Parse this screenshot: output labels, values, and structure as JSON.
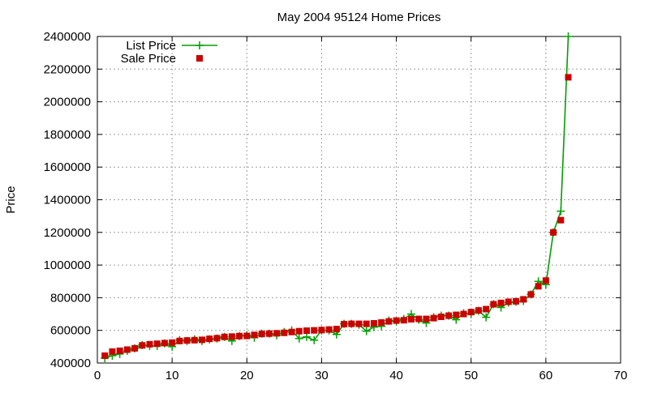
{
  "chart_data": {
    "type": "line",
    "title": "May 2004 95124 Home Prices",
    "xlabel": "",
    "ylabel": "Price",
    "xlim": [
      0,
      70
    ],
    "ylim": [
      400000,
      2400000
    ],
    "x_ticks": [
      0,
      10,
      20,
      30,
      40,
      50,
      60,
      70
    ],
    "y_ticks": [
      400000,
      600000,
      800000,
      1000000,
      1200000,
      1400000,
      1600000,
      1800000,
      2000000,
      2200000,
      2400000
    ],
    "grid": true,
    "legend_position": "top-left",
    "series": [
      {
        "name": "List Price",
        "color": "#00a000",
        "marker": "plus",
        "x": [
          1,
          2,
          3,
          4,
          5,
          6,
          7,
          8,
          9,
          10,
          11,
          12,
          13,
          14,
          15,
          16,
          17,
          18,
          19,
          20,
          21,
          22,
          23,
          24,
          25,
          26,
          27,
          28,
          29,
          30,
          31,
          32,
          33,
          34,
          35,
          36,
          37,
          38,
          39,
          40,
          41,
          42,
          43,
          44,
          45,
          46,
          47,
          48,
          49,
          50,
          51,
          52,
          53,
          54,
          55,
          56,
          57,
          58,
          59,
          60,
          61,
          62,
          63
        ],
        "y": [
          430000,
          445000,
          455000,
          475000,
          490000,
          510000,
          505000,
          505000,
          520000,
          500000,
          540000,
          535000,
          545000,
          535000,
          545000,
          550000,
          560000,
          535000,
          565000,
          570000,
          555000,
          580000,
          580000,
          570000,
          590000,
          600000,
          550000,
          560000,
          540000,
          600000,
          600000,
          575000,
          640000,
          640000,
          635000,
          595000,
          620000,
          625000,
          660000,
          655000,
          670000,
          700000,
          665000,
          645000,
          680000,
          690000,
          690000,
          665000,
          705000,
          700000,
          720000,
          680000,
          760000,
          740000,
          770000,
          775000,
          780000,
          820000,
          900000,
          880000,
          1200000,
          1330000,
          2400000
        ]
      },
      {
        "name": "Sale Price",
        "color": "#cc0000",
        "marker": "square",
        "x": [
          1,
          2,
          3,
          4,
          5,
          6,
          7,
          8,
          9,
          10,
          11,
          12,
          13,
          14,
          15,
          16,
          17,
          18,
          19,
          20,
          21,
          22,
          23,
          24,
          25,
          26,
          27,
          28,
          29,
          30,
          31,
          32,
          33,
          34,
          35,
          36,
          37,
          38,
          39,
          40,
          41,
          42,
          43,
          44,
          45,
          46,
          47,
          48,
          49,
          50,
          51,
          52,
          53,
          54,
          55,
          56,
          57,
          58,
          59,
          60,
          61,
          62,
          63
        ],
        "y": [
          445000,
          470000,
          475000,
          482000,
          490000,
          508000,
          515000,
          518000,
          522000,
          525000,
          535000,
          538000,
          540000,
          542000,
          548000,
          552000,
          560000,
          562000,
          565000,
          566000,
          572000,
          578000,
          580000,
          582000,
          585000,
          590000,
          595000,
          598000,
          600000,
          602000,
          605000,
          608000,
          638000,
          640000,
          640000,
          640000,
          643000,
          648000,
          655000,
          660000,
          662000,
          668000,
          670000,
          670000,
          675000,
          683000,
          690000,
          695000,
          700000,
          712000,
          722000,
          730000,
          760000,
          768000,
          775000,
          778000,
          790000,
          820000,
          870000,
          905000,
          1200000,
          1275000,
          2150000
        ]
      }
    ]
  }
}
